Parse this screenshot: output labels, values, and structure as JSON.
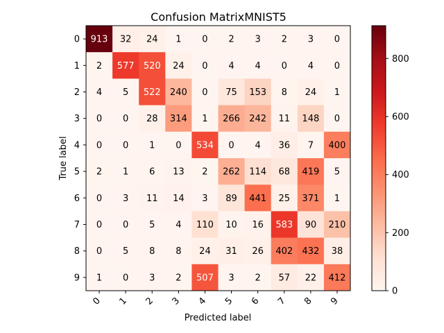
{
  "chart_data": {
    "type": "heatmap",
    "title": "Confusion MatrixMNIST5",
    "xlabel": "Predicted label",
    "ylabel": "True label",
    "x_categories": [
      "0",
      "1",
      "2",
      "3",
      "4",
      "5",
      "6",
      "7",
      "8",
      "9"
    ],
    "y_categories": [
      "0",
      "1",
      "2",
      "3",
      "4",
      "5",
      "6",
      "7",
      "8",
      "9"
    ],
    "matrix": [
      [
        913,
        32,
        24,
        1,
        0,
        2,
        3,
        2,
        3,
        0
      ],
      [
        2,
        577,
        520,
        24,
        0,
        4,
        4,
        0,
        4,
        0
      ],
      [
        4,
        5,
        522,
        240,
        0,
        75,
        153,
        8,
        24,
        1
      ],
      [
        0,
        0,
        28,
        314,
        1,
        266,
        242,
        11,
        148,
        0
      ],
      [
        0,
        0,
        1,
        0,
        534,
        0,
        4,
        36,
        7,
        400
      ],
      [
        2,
        1,
        6,
        13,
        2,
        262,
        114,
        68,
        419,
        5
      ],
      [
        0,
        3,
        11,
        14,
        3,
        89,
        441,
        25,
        371,
        1
      ],
      [
        0,
        0,
        5,
        4,
        110,
        10,
        16,
        583,
        90,
        210
      ],
      [
        0,
        5,
        8,
        8,
        24,
        31,
        26,
        402,
        432,
        38
      ],
      [
        1,
        0,
        3,
        2,
        507,
        3,
        2,
        57,
        22,
        412
      ]
    ],
    "colormap": "Reds",
    "colorbar": {
      "min": 0,
      "max": 913,
      "ticks": [
        0,
        200,
        400,
        600,
        800
      ]
    },
    "grid": false
  }
}
